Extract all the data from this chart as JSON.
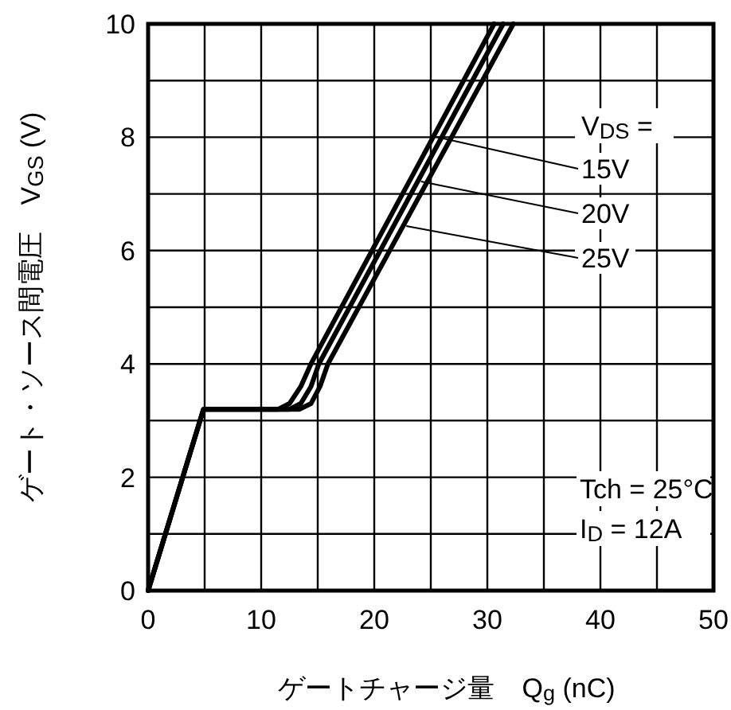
{
  "chart_data": {
    "type": "line",
    "xlabel": "ゲートチャージ量　Q$_{g}$ (nC)",
    "ylabel": "ゲート・ソース間電圧　V$_{GS}$ (V)",
    "legend_title": "V$_{DS}$ =",
    "legend": "right",
    "grid": true,
    "line_style": "solid",
    "xlim": [
      0,
      50
    ],
    "ylim": [
      0,
      10
    ],
    "xticks": [
      0,
      {
        "value": 5,
        "label": null
      },
      10,
      {
        "value": 15,
        "label": null
      },
      20,
      {
        "value": 25,
        "label": null
      },
      30,
      {
        "value": 35,
        "label": null
      },
      40,
      {
        "value": 45,
        "label": null
      },
      50
    ],
    "yticks": [
      0,
      {
        "value": 1,
        "label": null
      },
      2,
      {
        "value": 3,
        "label": null
      },
      4,
      {
        "value": 5,
        "label": null
      },
      6,
      {
        "value": 7,
        "label": null
      },
      8,
      {
        "value": 9,
        "label": null
      },
      10
    ],
    "series": [
      {
        "name": "15V",
        "color": "#000000",
        "x": [
          0,
          4.9,
          11.5,
          12.5,
          13.5,
          14.4,
          30.6
        ],
        "values": [
          0,
          3.2,
          3.2,
          3.3,
          3.6,
          4,
          10
        ]
      },
      {
        "name": "20V",
        "color": "#000000",
        "x": [
          0,
          4.9,
          12.5,
          13.5,
          14.4,
          15.1,
          31.4
        ],
        "values": [
          0,
          3.2,
          3.2,
          3.3,
          3.6,
          4,
          10
        ]
      },
      {
        "name": "25V",
        "color": "#000000",
        "x": [
          0,
          4.9,
          13.4,
          14.4,
          15.2,
          15.9,
          32.3
        ],
        "values": [
          0,
          3.2,
          3.2,
          3.3,
          3.6,
          4,
          10
        ]
      }
    ],
    "annotations": [
      "Tch = 25°C",
      "I$_{D}$ = 12A"
    ]
  }
}
